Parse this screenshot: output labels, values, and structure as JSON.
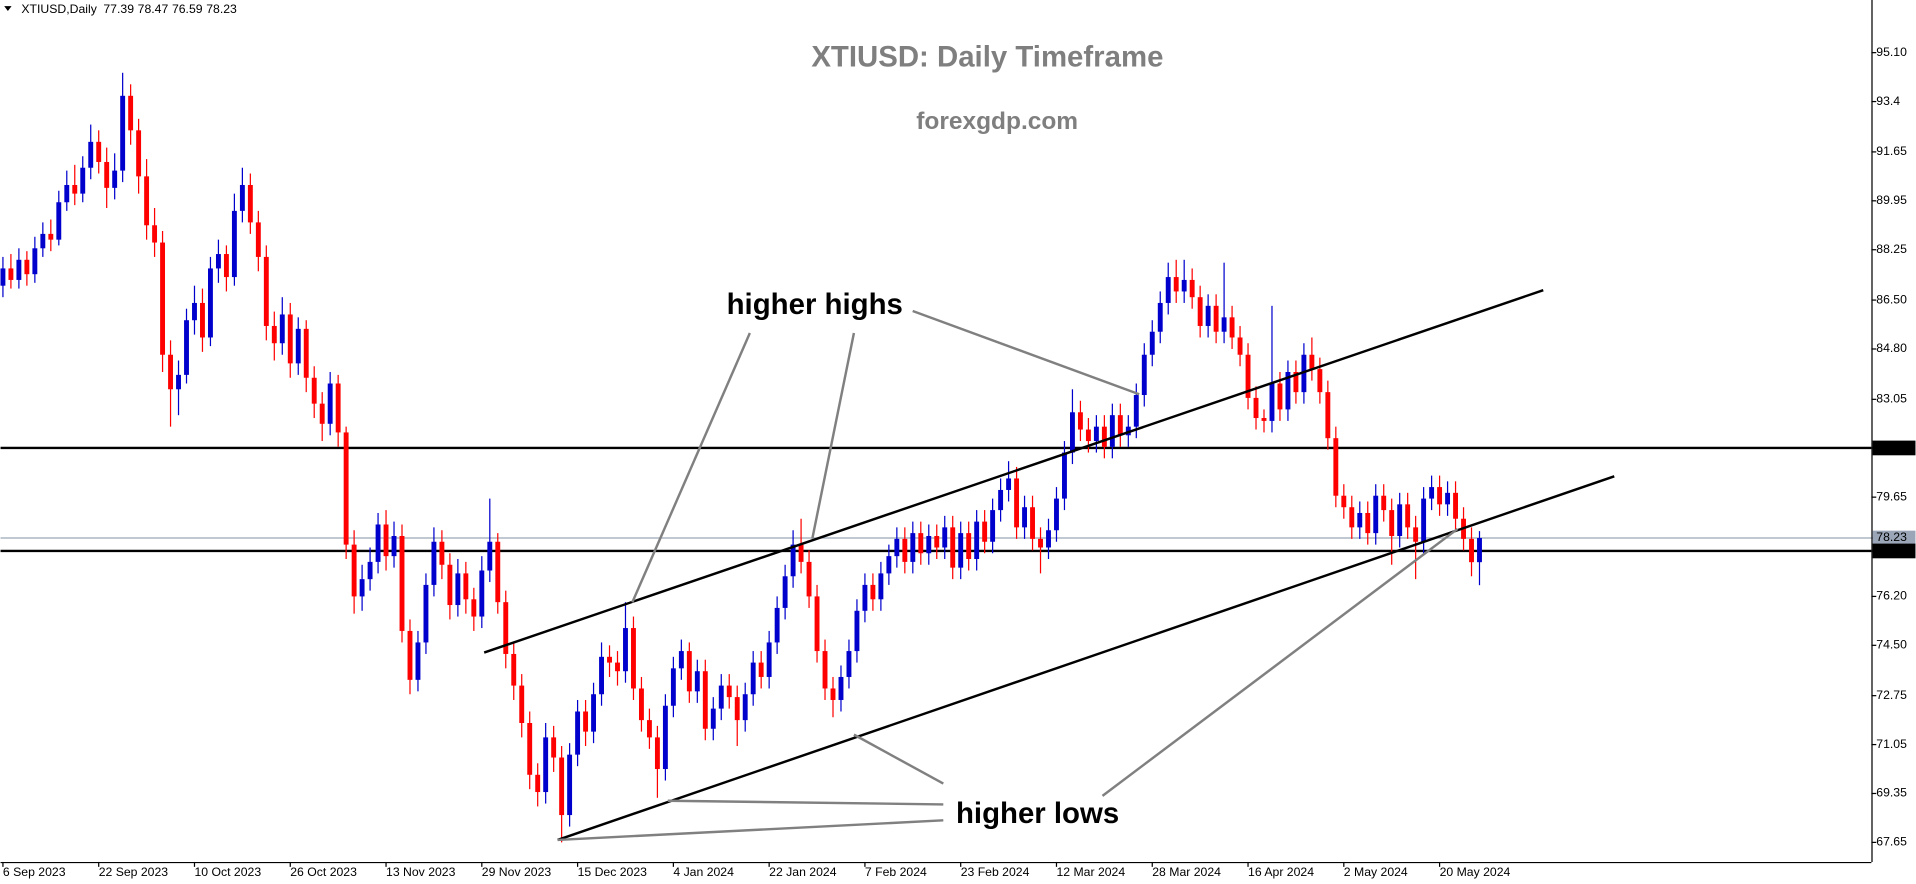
{
  "chart_data": {
    "type": "candlestick",
    "symbol": "XTIUSD,Daily",
    "title": "XTIUSD: Daily Timeframe",
    "subtitle": "forexgdp.com",
    "annotations": [
      "higher highs",
      "higher lows"
    ],
    "up_color": "#0000cd",
    "down_color": "#ff0000",
    "levels": [
      81.36,
      77.78
    ],
    "level_color": "#000000",
    "current_price": 78.23,
    "current_price_color": "#9aa6b8",
    "xlim": [
      -0.3,
      234.1
    ],
    "ylim": [
      66.97,
      96.93
    ],
    "yticks": [
      {
        "value": 95.1,
        "label": "95.10"
      },
      93.4,
      91.65,
      89.95,
      88.25,
      {
        "value": 86.5,
        "label": "86.50"
      },
      {
        "value": 84.8,
        "label": "84.80"
      },
      83.05,
      81.36,
      79.65,
      78.23,
      77.78,
      {
        "value": 76.2,
        "label": "76.20"
      },
      {
        "value": 74.5,
        "label": "74.50"
      },
      72.75,
      71.05,
      69.35,
      67.65
    ],
    "xticks": [
      {
        "value": 0,
        "label": "6 Sep 2023"
      },
      {
        "value": 12,
        "label": "22 Sep 2023"
      },
      {
        "value": 24,
        "label": "10 Oct 2023"
      },
      {
        "value": 36,
        "label": "26 Oct 2023"
      },
      {
        "value": 48,
        "label": "13 Nov 2023"
      },
      {
        "value": 60,
        "label": "29 Nov 2023"
      },
      {
        "value": 72,
        "label": "15 Dec 2023"
      },
      {
        "value": 84,
        "label": "4 Jan 2024"
      },
      {
        "value": 96,
        "label": "22 Jan 2024"
      },
      {
        "value": 108,
        "label": "7 Feb 2024"
      },
      {
        "value": 120,
        "label": "23 Feb 2024"
      },
      {
        "value": 132,
        "label": "12 Mar 2024"
      },
      {
        "value": 144,
        "label": "28 Mar 2024"
      },
      {
        "value": 156,
        "label": "16 Apr 2024"
      },
      {
        "value": 168,
        "label": "2 May 2024"
      },
      {
        "value": 180,
        "label": "20 May 2024"
      }
    ],
    "ohlc": [
      [
        87.0,
        88.0,
        86.6,
        87.6
      ],
      [
        87.6,
        88.1,
        86.9,
        87.2
      ],
      [
        87.2,
        88.3,
        86.9,
        87.9
      ],
      [
        87.9,
        88.2,
        87.0,
        87.4
      ],
      [
        87.4,
        88.7,
        87.1,
        88.3
      ],
      [
        88.3,
        89.2,
        88.0,
        88.8
      ],
      [
        88.8,
        89.3,
        88.2,
        88.6
      ],
      [
        88.6,
        90.3,
        88.4,
        89.9
      ],
      [
        89.9,
        91.0,
        89.6,
        90.5
      ],
      [
        90.5,
        91.2,
        89.8,
        90.2
      ],
      [
        90.2,
        91.5,
        89.9,
        91.1
      ],
      [
        91.1,
        92.6,
        90.7,
        92.0
      ],
      [
        92.0,
        92.4,
        90.9,
        91.3
      ],
      [
        91.3,
        91.8,
        89.7,
        90.4
      ],
      [
        90.4,
        91.6,
        90.0,
        91.0
      ],
      [
        91.0,
        94.4,
        90.6,
        93.6
      ],
      [
        93.6,
        94.0,
        91.9,
        92.4
      ],
      [
        92.4,
        92.8,
        90.2,
        90.8
      ],
      [
        90.8,
        91.4,
        88.6,
        89.1
      ],
      [
        89.1,
        89.7,
        88.0,
        88.5
      ],
      [
        88.5,
        88.9,
        84.0,
        84.6
      ],
      [
        84.6,
        85.1,
        82.1,
        83.4
      ],
      [
        83.4,
        84.4,
        82.5,
        83.9
      ],
      [
        83.9,
        86.2,
        83.6,
        85.8
      ],
      [
        85.8,
        87.0,
        85.3,
        86.4
      ],
      [
        86.4,
        86.9,
        84.7,
        85.2
      ],
      [
        85.2,
        88.0,
        84.9,
        87.6
      ],
      [
        87.6,
        88.6,
        87.1,
        88.1
      ],
      [
        88.1,
        88.4,
        86.8,
        87.3
      ],
      [
        87.3,
        90.2,
        87.0,
        89.6
      ],
      [
        89.6,
        91.1,
        89.2,
        90.5
      ],
      [
        90.5,
        90.9,
        88.8,
        89.2
      ],
      [
        89.2,
        89.6,
        87.5,
        88.0
      ],
      [
        88.0,
        88.4,
        85.1,
        85.6
      ],
      [
        85.6,
        86.1,
        84.4,
        85.0
      ],
      [
        85.0,
        86.6,
        84.6,
        86.0
      ],
      [
        86.0,
        86.4,
        83.8,
        84.3
      ],
      [
        84.3,
        85.9,
        83.9,
        85.5
      ],
      [
        85.5,
        85.8,
        83.3,
        83.8
      ],
      [
        83.8,
        84.2,
        82.4,
        82.9
      ],
      [
        82.9,
        83.3,
        81.6,
        82.2
      ],
      [
        82.2,
        84.0,
        81.8,
        83.6
      ],
      [
        83.6,
        83.9,
        81.4,
        81.9
      ],
      [
        81.9,
        82.1,
        77.5,
        78.0
      ],
      [
        78.0,
        78.5,
        75.6,
        76.2
      ],
      [
        76.2,
        77.3,
        75.7,
        76.8
      ],
      [
        76.8,
        77.9,
        76.4,
        77.4
      ],
      [
        77.4,
        79.1,
        77.0,
        78.7
      ],
      [
        78.7,
        79.2,
        77.1,
        77.6
      ],
      [
        77.6,
        78.8,
        77.2,
        78.3
      ],
      [
        78.3,
        78.7,
        74.6,
        75.0
      ],
      [
        75.0,
        75.4,
        72.8,
        73.3
      ],
      [
        73.3,
        75.0,
        72.9,
        74.6
      ],
      [
        74.6,
        77.0,
        74.2,
        76.6
      ],
      [
        76.6,
        78.6,
        76.2,
        78.1
      ],
      [
        78.1,
        78.5,
        76.8,
        77.3
      ],
      [
        77.3,
        77.7,
        75.4,
        75.9
      ],
      [
        75.9,
        77.5,
        75.5,
        77.0
      ],
      [
        77.0,
        77.4,
        75.6,
        76.1
      ],
      [
        76.1,
        76.5,
        75.0,
        75.5
      ],
      [
        75.5,
        77.6,
        75.1,
        77.1
      ],
      [
        77.1,
        79.6,
        76.7,
        78.1
      ],
      [
        78.1,
        78.4,
        75.6,
        76.0
      ],
      [
        76.0,
        76.4,
        73.7,
        74.2
      ],
      [
        74.2,
        74.6,
        72.6,
        73.1
      ],
      [
        73.1,
        73.5,
        71.3,
        71.8
      ],
      [
        71.8,
        72.2,
        69.5,
        70.0
      ],
      [
        70.0,
        70.4,
        68.9,
        69.4
      ],
      [
        69.4,
        71.8,
        69.0,
        71.3
      ],
      [
        71.3,
        71.7,
        70.1,
        70.6
      ],
      [
        70.6,
        71.0,
        67.65,
        68.6
      ],
      [
        68.6,
        71.1,
        68.2,
        70.7
      ],
      [
        70.7,
        72.6,
        70.3,
        72.2
      ],
      [
        72.2,
        72.6,
        71.0,
        71.5
      ],
      [
        71.5,
        73.2,
        71.1,
        72.8
      ],
      [
        72.8,
        74.6,
        72.4,
        74.1
      ],
      [
        74.1,
        74.5,
        73.4,
        73.9
      ],
      [
        73.9,
        74.3,
        73.1,
        73.6
      ],
      [
        73.6,
        76.0,
        73.2,
        75.1
      ],
      [
        75.1,
        75.5,
        72.6,
        73.0
      ],
      [
        73.0,
        73.4,
        71.5,
        71.9
      ],
      [
        71.9,
        72.3,
        70.9,
        71.3
      ],
      [
        71.3,
        71.7,
        69.2,
        70.2
      ],
      [
        70.2,
        72.8,
        69.8,
        72.4
      ],
      [
        72.4,
        74.1,
        72.0,
        73.7
      ],
      [
        73.7,
        74.7,
        73.3,
        74.3
      ],
      [
        74.3,
        74.6,
        72.5,
        72.9
      ],
      [
        72.9,
        74.0,
        72.5,
        73.6
      ],
      [
        73.6,
        74.0,
        71.2,
        71.6
      ],
      [
        71.6,
        72.7,
        71.2,
        72.3
      ],
      [
        72.3,
        73.5,
        71.9,
        73.1
      ],
      [
        73.1,
        73.5,
        72.3,
        72.7
      ],
      [
        72.7,
        73.1,
        71.0,
        71.9
      ],
      [
        71.9,
        73.2,
        71.5,
        72.8
      ],
      [
        72.8,
        74.3,
        72.4,
        73.9
      ],
      [
        73.9,
        74.3,
        73.0,
        73.4
      ],
      [
        73.4,
        75.0,
        73.0,
        74.6
      ],
      [
        74.6,
        76.2,
        74.2,
        75.8
      ],
      [
        75.8,
        77.3,
        75.4,
        76.9
      ],
      [
        76.9,
        78.5,
        76.5,
        78.0
      ],
      [
        78.0,
        78.9,
        77.0,
        77.4
      ],
      [
        77.4,
        77.8,
        75.8,
        76.2
      ],
      [
        76.2,
        76.6,
        73.9,
        74.3
      ],
      [
        74.3,
        74.7,
        72.6,
        73.0
      ],
      [
        73.0,
        73.4,
        72.0,
        72.6
      ],
      [
        72.6,
        73.8,
        72.2,
        73.4
      ],
      [
        73.4,
        74.7,
        73.0,
        74.3
      ],
      [
        74.3,
        76.1,
        73.9,
        75.7
      ],
      [
        75.7,
        77.0,
        75.3,
        76.6
      ],
      [
        76.6,
        77.0,
        75.7,
        76.1
      ],
      [
        76.1,
        77.4,
        75.7,
        77.0
      ],
      [
        77.0,
        78.0,
        76.6,
        77.6
      ],
      [
        77.6,
        78.6,
        77.2,
        78.2
      ],
      [
        78.2,
        78.6,
        77.0,
        77.4
      ],
      [
        77.4,
        78.8,
        77.0,
        78.4
      ],
      [
        78.4,
        78.8,
        77.3,
        77.7
      ],
      [
        77.7,
        78.7,
        77.3,
        78.3
      ],
      [
        78.3,
        78.7,
        77.5,
        77.9
      ],
      [
        77.9,
        79.0,
        77.5,
        78.6
      ],
      [
        78.6,
        79.0,
        76.8,
        77.2
      ],
      [
        77.2,
        78.8,
        76.8,
        78.4
      ],
      [
        78.4,
        78.8,
        77.1,
        77.5
      ],
      [
        77.5,
        79.2,
        77.1,
        78.8
      ],
      [
        78.8,
        79.2,
        77.7,
        78.1
      ],
      [
        78.1,
        79.6,
        77.7,
        79.2
      ],
      [
        79.2,
        80.3,
        78.8,
        79.9
      ],
      [
        79.9,
        80.9,
        79.5,
        80.3
      ],
      [
        80.3,
        80.7,
        78.2,
        78.6
      ],
      [
        78.6,
        79.7,
        78.2,
        79.3
      ],
      [
        79.3,
        79.7,
        77.8,
        78.2
      ],
      [
        78.2,
        78.6,
        77.0,
        77.9
      ],
      [
        77.9,
        78.9,
        77.5,
        78.5
      ],
      [
        78.5,
        80.0,
        78.1,
        79.6
      ],
      [
        79.6,
        81.6,
        79.2,
        81.2
      ],
      [
        81.2,
        83.4,
        80.8,
        82.6
      ],
      [
        82.6,
        83.0,
        81.6,
        82.0
      ],
      [
        82.0,
        82.4,
        81.2,
        81.6
      ],
      [
        81.6,
        82.5,
        81.2,
        82.1
      ],
      [
        82.1,
        82.5,
        81.0,
        81.4
      ],
      [
        81.4,
        82.9,
        81.0,
        82.5
      ],
      [
        82.5,
        82.9,
        81.4,
        81.8
      ],
      [
        81.8,
        82.5,
        81.4,
        82.1
      ],
      [
        82.1,
        83.6,
        81.7,
        83.2
      ],
      [
        83.2,
        85.0,
        82.8,
        84.6
      ],
      [
        84.6,
        85.8,
        84.2,
        85.4
      ],
      [
        85.4,
        86.8,
        85.0,
        86.4
      ],
      [
        86.4,
        87.8,
        86.0,
        87.3
      ],
      [
        87.3,
        87.9,
        86.4,
        86.8
      ],
      [
        86.8,
        87.9,
        86.4,
        87.2
      ],
      [
        87.2,
        87.6,
        86.2,
        86.6
      ],
      [
        86.6,
        87.0,
        85.2,
        85.6
      ],
      [
        85.6,
        86.7,
        85.2,
        86.3
      ],
      [
        86.3,
        86.7,
        85.0,
        85.4
      ],
      [
        85.4,
        87.8,
        85.0,
        85.9
      ],
      [
        85.9,
        86.3,
        84.8,
        85.2
      ],
      [
        85.2,
        85.6,
        84.2,
        84.6
      ],
      [
        84.6,
        85.0,
        82.7,
        83.1
      ],
      [
        83.1,
        83.5,
        82.0,
        82.4
      ],
      [
        82.4,
        82.7,
        81.9,
        82.3
      ],
      [
        82.3,
        86.3,
        81.9,
        83.6
      ],
      [
        83.6,
        84.0,
        82.3,
        82.7
      ],
      [
        82.7,
        84.4,
        82.3,
        84.0
      ],
      [
        84.0,
        84.4,
        82.9,
        83.3
      ],
      [
        83.3,
        85.0,
        82.9,
        84.6
      ],
      [
        84.6,
        85.2,
        83.7,
        84.1
      ],
      [
        84.1,
        84.5,
        82.9,
        83.3
      ],
      [
        83.3,
        83.7,
        81.3,
        81.7
      ],
      [
        81.7,
        82.1,
        79.3,
        79.7
      ],
      [
        79.7,
        80.1,
        78.9,
        79.3
      ],
      [
        79.3,
        79.7,
        78.2,
        78.6
      ],
      [
        78.6,
        79.5,
        78.2,
        79.1
      ],
      [
        79.1,
        79.5,
        78.0,
        78.4
      ],
      [
        78.4,
        80.1,
        78.0,
        79.7
      ],
      [
        79.7,
        80.1,
        78.8,
        79.2
      ],
      [
        79.2,
        79.6,
        77.3,
        78.3
      ],
      [
        78.3,
        79.8,
        77.9,
        79.4
      ],
      [
        79.4,
        79.8,
        78.2,
        78.6
      ],
      [
        78.6,
        79.0,
        76.8,
        78.1
      ],
      [
        78.1,
        80.0,
        77.7,
        79.6
      ],
      [
        79.6,
        80.4,
        79.2,
        80.0
      ],
      [
        80.0,
        80.4,
        79.0,
        79.4
      ],
      [
        79.4,
        80.2,
        79.0,
        79.8
      ],
      [
        79.8,
        80.2,
        78.5,
        78.9
      ],
      [
        78.9,
        79.3,
        77.8,
        78.2
      ],
      [
        78.2,
        78.6,
        76.9,
        77.39
      ],
      [
        77.39,
        78.47,
        76.59,
        78.23
      ]
    ]
  }
}
